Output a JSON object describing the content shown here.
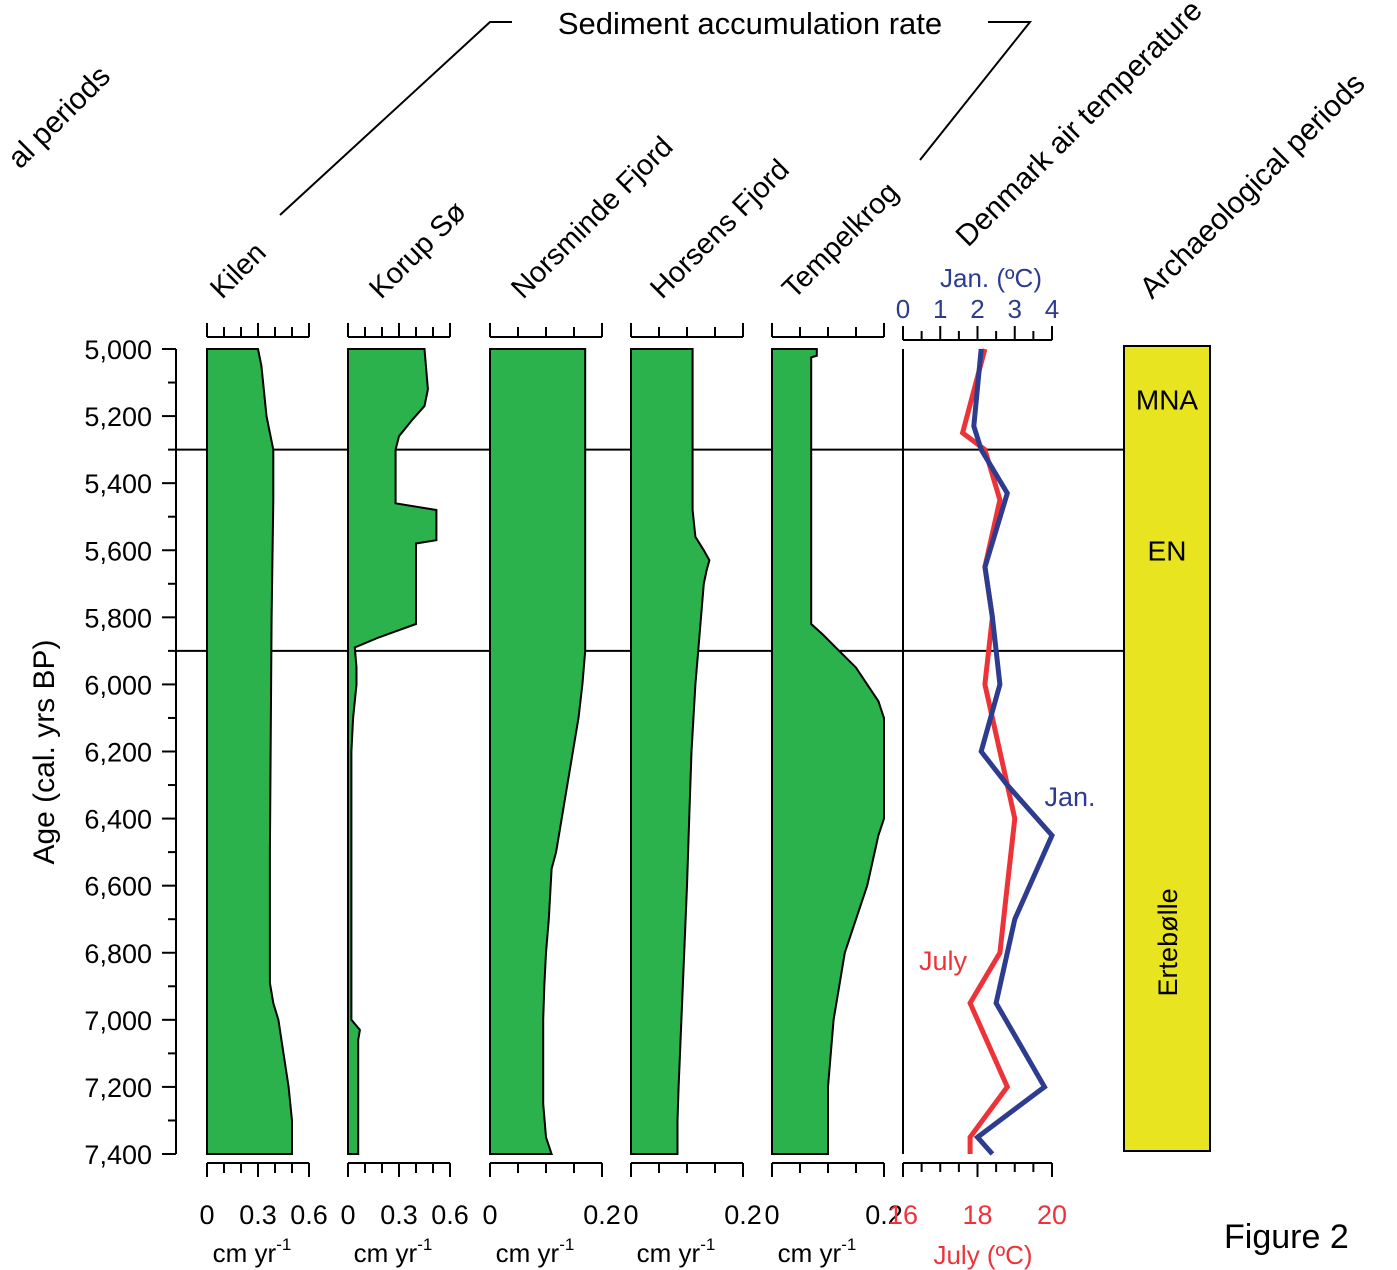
{
  "figure_label": "Figure 2",
  "header": {
    "group_label": "Sediment accumulation rate"
  },
  "colors": {
    "fill": "#2bb24c",
    "july": "#ee3338",
    "jan": "#2d3c8e",
    "period_fill": "#e8e41f"
  },
  "chart_data": {
    "type": "area",
    "y_axis": {
      "label": "Age (cal. yrs BP)",
      "range": [
        5000,
        7400
      ],
      "ticks": [
        "5,000",
        "5,200",
        "5,400",
        "5,600",
        "5,800",
        "6,000",
        "6,200",
        "6,400",
        "6,600",
        "6,800",
        "7,000",
        "7,200",
        "7,400"
      ],
      "inverted": true
    },
    "boundaries": [
      5300,
      5900
    ],
    "panels": [
      {
        "name": "Kilen",
        "unit": "cm yr",
        "unit_sup": "-1",
        "xlim": [
          0,
          0.6
        ],
        "tick_labels": [
          "0",
          "0.3",
          "0.6"
        ],
        "points": [
          [
            5000,
            0.3
          ],
          [
            5050,
            0.32
          ],
          [
            5100,
            0.33
          ],
          [
            5150,
            0.34
          ],
          [
            5200,
            0.35
          ],
          [
            5250,
            0.37
          ],
          [
            5300,
            0.39
          ],
          [
            5450,
            0.39
          ],
          [
            5800,
            0.38
          ],
          [
            6500,
            0.37
          ],
          [
            6890,
            0.37
          ],
          [
            6950,
            0.39
          ],
          [
            7000,
            0.42
          ],
          [
            7100,
            0.45
          ],
          [
            7200,
            0.48
          ],
          [
            7300,
            0.5
          ],
          [
            7400,
            0.5
          ]
        ]
      },
      {
        "name": "Korup Sø",
        "unit": "cm yr",
        "unit_sup": "-1",
        "xlim": [
          0,
          0.6
        ],
        "tick_labels": [
          "0",
          "0.3",
          "0.6"
        ],
        "points": [
          [
            5000,
            0.45
          ],
          [
            5060,
            0.46
          ],
          [
            5120,
            0.47
          ],
          [
            5170,
            0.45
          ],
          [
            5210,
            0.38
          ],
          [
            5260,
            0.3
          ],
          [
            5300,
            0.28
          ],
          [
            5460,
            0.28
          ],
          [
            5480,
            0.52
          ],
          [
            5570,
            0.52
          ],
          [
            5580,
            0.4
          ],
          [
            5820,
            0.4
          ],
          [
            5860,
            0.18
          ],
          [
            5890,
            0.04
          ],
          [
            5950,
            0.05
          ],
          [
            6000,
            0.05
          ],
          [
            6100,
            0.03
          ],
          [
            6200,
            0.02
          ],
          [
            6500,
            0.02
          ],
          [
            7000,
            0.02
          ],
          [
            7030,
            0.07
          ],
          [
            7060,
            0.06
          ],
          [
            7380,
            0.06
          ],
          [
            7400,
            0.06
          ]
        ]
      },
      {
        "name": "Norsminde Fjord",
        "unit": "cm yr",
        "unit_sup": "-1",
        "xlim": [
          0,
          0.2
        ],
        "tick_labels": [
          "0",
          "0.2"
        ],
        "points": [
          [
            5000,
            0.17
          ],
          [
            5650,
            0.17
          ],
          [
            5900,
            0.17
          ],
          [
            6000,
            0.165
          ],
          [
            6100,
            0.158
          ],
          [
            6200,
            0.148
          ],
          [
            6300,
            0.138
          ],
          [
            6400,
            0.128
          ],
          [
            6500,
            0.118
          ],
          [
            6550,
            0.11
          ],
          [
            6700,
            0.105
          ],
          [
            6800,
            0.1
          ],
          [
            6900,
            0.097
          ],
          [
            7000,
            0.095
          ],
          [
            7250,
            0.095
          ],
          [
            7350,
            0.1
          ],
          [
            7400,
            0.11
          ]
        ]
      },
      {
        "name": "Horsens Fjord",
        "unit": "cm yr",
        "unit_sup": "-1",
        "xlim": [
          0,
          0.2
        ],
        "tick_labels": [
          "0",
          "0.2"
        ],
        "points": [
          [
            5000,
            0.11
          ],
          [
            5340,
            0.11
          ],
          [
            5400,
            0.11
          ],
          [
            5480,
            0.11
          ],
          [
            5560,
            0.115
          ],
          [
            5600,
            0.13
          ],
          [
            5630,
            0.14
          ],
          [
            5660,
            0.135
          ],
          [
            5700,
            0.13
          ],
          [
            5800,
            0.125
          ],
          [
            5900,
            0.12
          ],
          [
            6000,
            0.115
          ],
          [
            6200,
            0.108
          ],
          [
            6400,
            0.104
          ],
          [
            6600,
            0.1
          ],
          [
            6800,
            0.095
          ],
          [
            7000,
            0.09
          ],
          [
            7200,
            0.085
          ],
          [
            7300,
            0.083
          ],
          [
            7400,
            0.083
          ]
        ]
      },
      {
        "name": "Tempelkrog",
        "unit": "cm yr",
        "unit_sup": "-1",
        "xlim": [
          0,
          0.2
        ],
        "tick_labels": [
          "0",
          "0.2"
        ],
        "points": [
          [
            5000,
            0.08
          ],
          [
            5020,
            0.08
          ],
          [
            5025,
            0.07
          ],
          [
            5700,
            0.07
          ],
          [
            5820,
            0.07
          ],
          [
            5850,
            0.09
          ],
          [
            5900,
            0.12
          ],
          [
            5950,
            0.15
          ],
          [
            6000,
            0.17
          ],
          [
            6050,
            0.19
          ],
          [
            6100,
            0.2
          ],
          [
            6150,
            0.2
          ],
          [
            6400,
            0.2
          ],
          [
            6450,
            0.19
          ],
          [
            6600,
            0.17
          ],
          [
            6700,
            0.15
          ],
          [
            6800,
            0.13
          ],
          [
            6900,
            0.12
          ],
          [
            7000,
            0.11
          ],
          [
            7200,
            0.1
          ],
          [
            7400,
            0.1
          ]
        ]
      }
    ],
    "temperature": {
      "title": "Denmark air temperature",
      "top_axis": {
        "label": "Jan. (ºC)",
        "range": [
          0,
          4
        ],
        "tick_labels": [
          "0",
          "1",
          "2",
          "3",
          "4"
        ]
      },
      "bottom_axis": {
        "label": "July (ºC)",
        "range": [
          16,
          20
        ],
        "tick_labels": [
          "16",
          "18",
          "20"
        ]
      },
      "series": [
        {
          "name": "July",
          "axis": "bottom",
          "points": [
            [
              5000,
              18.2
            ],
            [
              5250,
              17.6
            ],
            [
              5300,
              18.2
            ],
            [
              5450,
              18.6
            ],
            [
              5650,
              18.2
            ],
            [
              5800,
              18.4
            ],
            [
              6000,
              18.2
            ],
            [
              6200,
              18.6
            ],
            [
              6400,
              19.0
            ],
            [
              6600,
              18.8
            ],
            [
              6800,
              18.6
            ],
            [
              6950,
              17.8
            ],
            [
              7200,
              18.8
            ],
            [
              7350,
              17.8
            ],
            [
              7400,
              17.8
            ]
          ]
        },
        {
          "name": "Jan.",
          "axis": "top",
          "points": [
            [
              5000,
              2.1
            ],
            [
              5230,
              1.9
            ],
            [
              5300,
              2.1
            ],
            [
              5430,
              2.8
            ],
            [
              5650,
              2.2
            ],
            [
              5800,
              2.4
            ],
            [
              6000,
              2.6
            ],
            [
              6200,
              2.1
            ],
            [
              6300,
              2.8
            ],
            [
              6450,
              4.0
            ],
            [
              6700,
              3.0
            ],
            [
              6950,
              2.5
            ],
            [
              7200,
              3.8
            ],
            [
              7350,
              2.0
            ],
            [
              7400,
              2.4
            ]
          ]
        }
      ]
    },
    "archaeological_periods": {
      "title": "Archaeological periods",
      "periods": [
        {
          "name": "MNA",
          "from": 5000,
          "to": 5300,
          "orientation": "horizontal"
        },
        {
          "name": "EN",
          "from": 5300,
          "to": 5900,
          "orientation": "horizontal"
        },
        {
          "name": "Ertebølle",
          "from": 5900,
          "to": 7400,
          "orientation": "vertical"
        }
      ]
    },
    "left_period_title": "al periods"
  }
}
